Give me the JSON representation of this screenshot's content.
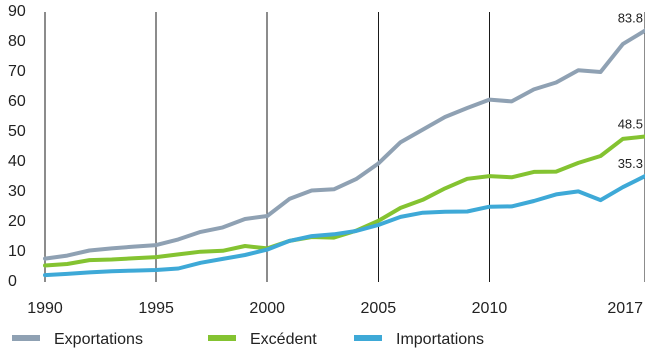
{
  "chart_data": {
    "type": "line",
    "title": "",
    "xlabel": "",
    "ylabel": "",
    "x": [
      1990,
      1991,
      1992,
      1993,
      1994,
      1995,
      1996,
      1997,
      1998,
      1999,
      2000,
      2001,
      2002,
      2003,
      2004,
      2005,
      2006,
      2007,
      2008,
      2009,
      2010,
      2011,
      2012,
      2013,
      2014,
      2015,
      2016,
      2017
    ],
    "x_ticks": [
      1990,
      1995,
      2000,
      2005,
      2010,
      2017
    ],
    "x_tick_labels": [
      "1990",
      "1995",
      "2000",
      "2005",
      "2010",
      "2017"
    ],
    "y_ticks": [
      0,
      10,
      20,
      30,
      40,
      50,
      60,
      70,
      80,
      90
    ],
    "y_tick_labels": [
      "0",
      "10",
      "20",
      "30",
      "40",
      "50",
      "60",
      "70",
      "80",
      "90"
    ],
    "xlim": [
      1990,
      2017
    ],
    "ylim": [
      0,
      90
    ],
    "grid": "vertical",
    "legend": "bottom",
    "series": [
      {
        "name": "Exportations",
        "color": "#8fa1b3",
        "values": [
          7.8,
          8.8,
          10.5,
          11.2,
          11.8,
          12.3,
          14.2,
          16.7,
          18.2,
          21.0,
          22.0,
          27.7,
          30.5,
          30.9,
          34.3,
          39.5,
          46.6,
          50.8,
          55.0,
          58.0,
          60.8,
          60.2,
          64.2,
          66.5,
          70.6,
          70.0,
          79.3,
          83.8
        ],
        "end_label": "83.8"
      },
      {
        "name": "Excédent",
        "color": "#84c331",
        "values": [
          5.5,
          6.0,
          7.3,
          7.5,
          7.9,
          8.3,
          9.2,
          10.1,
          10.4,
          12.0,
          11.2,
          13.7,
          15.0,
          14.8,
          17.1,
          20.4,
          24.7,
          27.4,
          31.2,
          34.4,
          35.3,
          34.9,
          36.7,
          36.8,
          39.7,
          42.0,
          47.7,
          48.5
        ],
        "end_label": "48.5"
      },
      {
        "name": "Importations",
        "color": "#3ea9d7",
        "values": [
          2.3,
          2.7,
          3.2,
          3.6,
          3.8,
          4.0,
          4.5,
          6.4,
          7.7,
          9.0,
          10.8,
          13.7,
          15.3,
          15.9,
          17.0,
          19.0,
          21.7,
          23.1,
          23.4,
          23.5,
          25.1,
          25.2,
          27.0,
          29.2,
          30.2,
          27.3,
          31.6,
          35.3
        ],
        "end_label": "35.3"
      }
    ]
  }
}
